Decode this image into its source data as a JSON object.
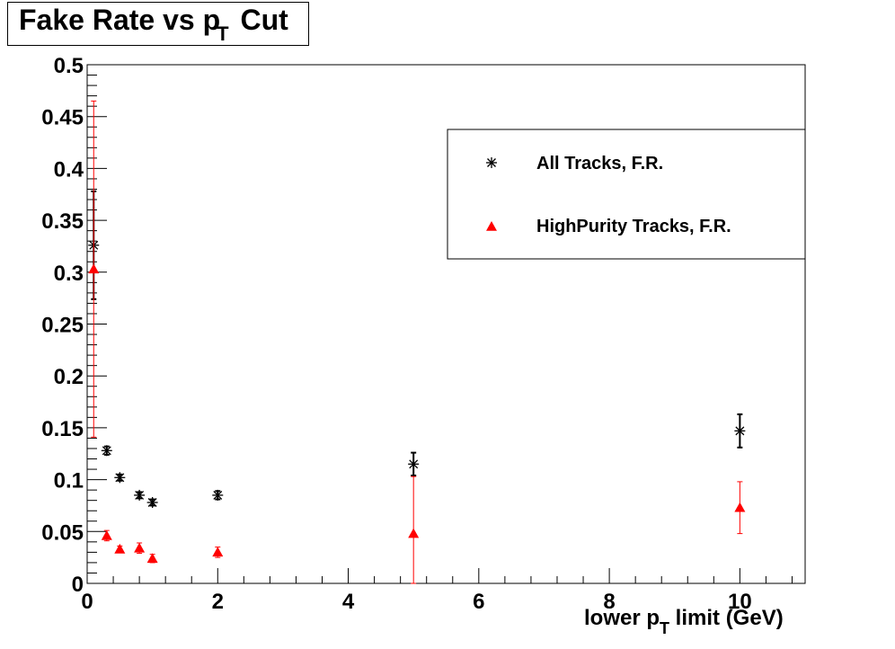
{
  "title": {
    "main": "Fake Rate vs p",
    "sub": "T",
    "tail": " Cut"
  },
  "xlabel": {
    "main": "lower p",
    "sub": "T",
    "tail": " limit (GeV)"
  },
  "legend": [
    {
      "label": "All Tracks, F.R.",
      "color": "#000000",
      "marker": "star"
    },
    {
      "label": "HighPurity Tracks, F.R.",
      "color": "#ff0000",
      "marker": "triangle"
    }
  ],
  "chart_data": {
    "type": "scatter",
    "xlim": [
      0,
      11
    ],
    "ylim": [
      0,
      0.5
    ],
    "xticks": [
      0,
      2,
      4,
      6,
      8,
      10
    ],
    "yticks": [
      0,
      0.05,
      0.1,
      0.15,
      0.2,
      0.25,
      0.3,
      0.35,
      0.4,
      0.45,
      0.5
    ],
    "ytick_labels": [
      "0",
      "0.05",
      "0.1",
      "0.15",
      "0.2",
      "0.25",
      "0.3",
      "0.35",
      "0.4",
      "0.45",
      "0.5"
    ],
    "series": [
      {
        "name": "All Tracks, F.R.",
        "color": "#000000",
        "marker": "star",
        "points": [
          {
            "x": 0.1,
            "y": 0.326,
            "err": 0.052
          },
          {
            "x": 0.3,
            "y": 0.128,
            "err": 0.004
          },
          {
            "x": 0.5,
            "y": 0.102,
            "err": 0.003
          },
          {
            "x": 0.8,
            "y": 0.085,
            "err": 0.003
          },
          {
            "x": 1.0,
            "y": 0.078,
            "err": 0.003
          },
          {
            "x": 2.0,
            "y": 0.085,
            "err": 0.004
          },
          {
            "x": 5.0,
            "y": 0.115,
            "err": 0.011
          },
          {
            "x": 10.0,
            "y": 0.147,
            "err": 0.016
          }
        ]
      },
      {
        "name": "HighPurity Tracks, F.R.",
        "color": "#ff0000",
        "marker": "triangle",
        "points": [
          {
            "x": 0.1,
            "y": 0.303,
            "err": 0.162
          },
          {
            "x": 0.3,
            "y": 0.046,
            "err": 0.005
          },
          {
            "x": 0.5,
            "y": 0.033,
            "err": 0.003
          },
          {
            "x": 0.8,
            "y": 0.034,
            "err": 0.005
          },
          {
            "x": 1.0,
            "y": 0.024,
            "err": 0.004
          },
          {
            "x": 2.0,
            "y": 0.03,
            "err": 0.005
          },
          {
            "x": 5.0,
            "y": 0.048,
            "err": 0.055
          },
          {
            "x": 10.0,
            "y": 0.073,
            "err": 0.025
          }
        ]
      }
    ]
  }
}
